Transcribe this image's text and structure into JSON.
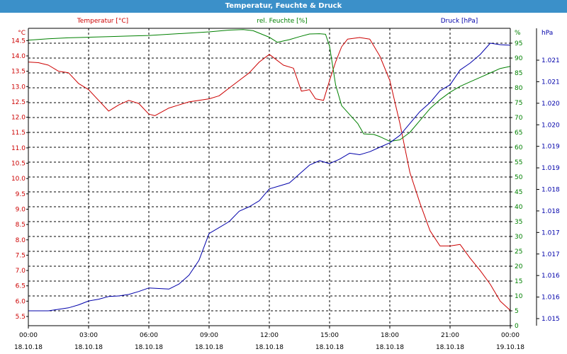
{
  "window": {
    "title": "Temperatur, Feuchte & Druck"
  },
  "colors": {
    "temperature": "#cc0000",
    "humidity": "#008000",
    "pressure": "#0000aa",
    "axis": "#000000",
    "titlebar": "#3b90c9"
  },
  "chart_data": {
    "type": "line",
    "title": "Temperatur, Feuchte & Druck",
    "grid": true,
    "x": {
      "range_hours": [
        0,
        24
      ],
      "tick_times": [
        "00:00",
        "03:00",
        "06:00",
        "09:00",
        "12:00",
        "15:00",
        "18:00",
        "21:00",
        "00:00"
      ],
      "tick_dates": [
        "18.10.18",
        "18.10.18",
        "18.10.18",
        "18.10.18",
        "18.10.18",
        "18.10.18",
        "18.10.18",
        "18.10.18",
        "19.10.18"
      ]
    },
    "axes": {
      "temperature": {
        "label": "Temperatur [°C]",
        "unit": "°C",
        "range": [
          5.2,
          14.9
        ],
        "ticks": [
          "5.5",
          "6.0",
          "6.5",
          "7.0",
          "7.5",
          "8.0",
          "8.5",
          "9.0",
          "9.5",
          "10.0",
          "10.5",
          "11.0",
          "11.5",
          "12.0",
          "12.5",
          "13.0",
          "13.5",
          "14.0",
          "14.5"
        ]
      },
      "humidity": {
        "label": "rel. Feuchte [%]",
        "unit": "%",
        "range": [
          0,
          100
        ],
        "ticks": [
          "0",
          "5",
          "10",
          "15",
          "20",
          "25",
          "30",
          "35",
          "40",
          "45",
          "50",
          "55",
          "60",
          "65",
          "70",
          "75",
          "80",
          "85",
          "90",
          "95"
        ]
      },
      "pressure": {
        "label": "Druck [hPa]",
        "unit": "hPa",
        "range": [
          0,
          100
        ],
        "ticks": [
          "1.015",
          "1.016",
          "1.016",
          "1.017",
          "1.017",
          "1.018",
          "1.018",
          "1.019",
          "1.019",
          "1.020",
          "1.020",
          "1.021",
          "1.021"
        ]
      }
    },
    "series": [
      {
        "name": "Temperatur [°C]",
        "axis": "temperature",
        "points": [
          [
            0,
            13.8
          ],
          [
            0.5,
            13.78
          ],
          [
            1,
            13.7
          ],
          [
            1.5,
            13.5
          ],
          [
            2,
            13.45
          ],
          [
            2.5,
            13.1
          ],
          [
            3,
            12.9
          ],
          [
            3.5,
            12.55
          ],
          [
            4,
            12.2
          ],
          [
            4.5,
            12.4
          ],
          [
            5,
            12.55
          ],
          [
            5.5,
            12.45
          ],
          [
            6,
            12.1
          ],
          [
            6.3,
            12.05
          ],
          [
            7,
            12.3
          ],
          [
            7.5,
            12.4
          ],
          [
            8,
            12.5
          ],
          [
            8.5,
            12.55
          ],
          [
            9,
            12.6
          ],
          [
            9.5,
            12.7
          ],
          [
            10,
            12.95
          ],
          [
            10.5,
            13.2
          ],
          [
            11,
            13.45
          ],
          [
            11.5,
            13.8
          ],
          [
            12,
            14.05
          ],
          [
            12.3,
            13.9
          ],
          [
            12.7,
            13.7
          ],
          [
            13.2,
            13.6
          ],
          [
            13.6,
            12.85
          ],
          [
            14,
            12.9
          ],
          [
            14.3,
            12.6
          ],
          [
            14.7,
            12.55
          ],
          [
            15,
            13.2
          ],
          [
            15.3,
            13.8
          ],
          [
            15.6,
            14.3
          ],
          [
            15.9,
            14.55
          ],
          [
            16.5,
            14.6
          ],
          [
            17,
            14.55
          ],
          [
            17.5,
            14.0
          ],
          [
            18,
            13.2
          ],
          [
            18.5,
            11.8
          ],
          [
            19,
            10.2
          ],
          [
            19.5,
            9.2
          ],
          [
            20,
            8.3
          ],
          [
            20.5,
            7.8
          ],
          [
            21,
            7.8
          ],
          [
            21.5,
            7.85
          ],
          [
            22,
            7.4
          ],
          [
            22.5,
            7.0
          ],
          [
            23,
            6.55
          ],
          [
            23.5,
            6.0
          ],
          [
            24,
            5.7
          ]
        ]
      },
      {
        "name": "rel. Feuchte [%]",
        "axis": "humidity",
        "points": [
          [
            0,
            96
          ],
          [
            1,
            96.5
          ],
          [
            2,
            96.8
          ],
          [
            3,
            97
          ],
          [
            4,
            97.2
          ],
          [
            5,
            97.4
          ],
          [
            6,
            97.6
          ],
          [
            7,
            98
          ],
          [
            8,
            98.4
          ],
          [
            9,
            98.8
          ],
          [
            10,
            99.4
          ],
          [
            10.7,
            99.6
          ],
          [
            11.2,
            99.2
          ],
          [
            12,
            97
          ],
          [
            12.4,
            95.3
          ],
          [
            13,
            96.2
          ],
          [
            13.5,
            97.2
          ],
          [
            14,
            98.1
          ],
          [
            14.5,
            98.2
          ],
          [
            14.8,
            98
          ],
          [
            15,
            94
          ],
          [
            15.3,
            81
          ],
          [
            15.6,
            74
          ],
          [
            16,
            71
          ],
          [
            16.4,
            68
          ],
          [
            16.7,
            64.5
          ],
          [
            17.2,
            64.3
          ],
          [
            17.5,
            63.6
          ],
          [
            18,
            62
          ],
          [
            18.5,
            62.5
          ],
          [
            19,
            65
          ],
          [
            19.5,
            69
          ],
          [
            20,
            73
          ],
          [
            20.5,
            76
          ],
          [
            21,
            78.5
          ],
          [
            21.5,
            80.5
          ],
          [
            22,
            82
          ],
          [
            22.5,
            83.5
          ],
          [
            23,
            85
          ],
          [
            23.5,
            86.5
          ],
          [
            24,
            87.2
          ]
        ]
      },
      {
        "name": "Druck [hPa]",
        "axis": "pressure",
        "points": [
          [
            0,
            5
          ],
          [
            1,
            5
          ],
          [
            1.5,
            5.5
          ],
          [
            2,
            6
          ],
          [
            2.5,
            7
          ],
          [
            3,
            8.3
          ],
          [
            3.5,
            8.9
          ],
          [
            4,
            9.8
          ],
          [
            4.5,
            10
          ],
          [
            5,
            10.5
          ],
          [
            5.5,
            11.5
          ],
          [
            6,
            12.7
          ],
          [
            6.5,
            12.5
          ],
          [
            7,
            12.3
          ],
          [
            7.5,
            14
          ],
          [
            8,
            17
          ],
          [
            8.5,
            22
          ],
          [
            9,
            31
          ],
          [
            9.5,
            33
          ],
          [
            10,
            35
          ],
          [
            10.5,
            38.5
          ],
          [
            11,
            40
          ],
          [
            11.5,
            42
          ],
          [
            12,
            46
          ],
          [
            12.5,
            47
          ],
          [
            13,
            48
          ],
          [
            13.5,
            51
          ],
          [
            14,
            54
          ],
          [
            14.5,
            55.5
          ],
          [
            15,
            54.5
          ],
          [
            15.5,
            56
          ],
          [
            16,
            58
          ],
          [
            16.5,
            57.5
          ],
          [
            17,
            58.5
          ],
          [
            17.5,
            60
          ],
          [
            18,
            61.5
          ],
          [
            18.5,
            64
          ],
          [
            19,
            68
          ],
          [
            19.5,
            72
          ],
          [
            20,
            75
          ],
          [
            20.5,
            79
          ],
          [
            21,
            81
          ],
          [
            21.5,
            86
          ],
          [
            22,
            88.3
          ],
          [
            22.5,
            91.2
          ],
          [
            23,
            95
          ],
          [
            23.5,
            94.5
          ],
          [
            24,
            94.3
          ]
        ]
      }
    ]
  }
}
